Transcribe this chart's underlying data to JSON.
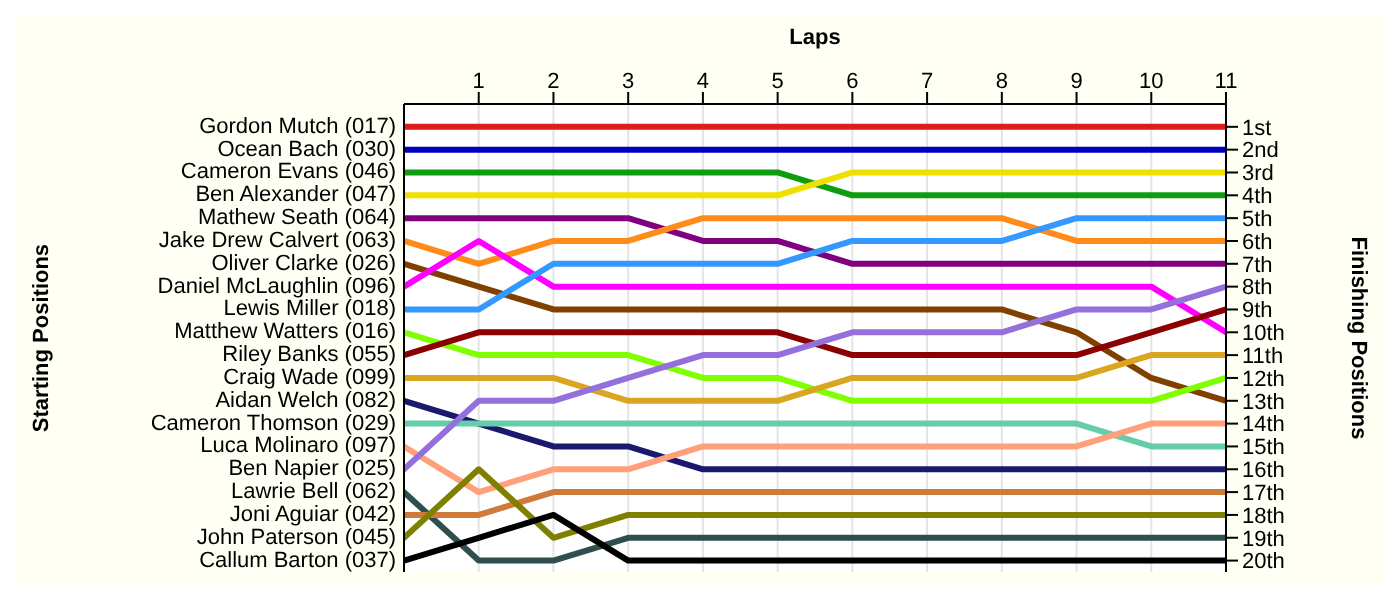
{
  "chart_data": {
    "type": "line",
    "xlabel": "Laps",
    "ylabel": "Finishing Positions",
    "annotations": [
      "Starting Positions"
    ],
    "legend": "left",
    "x": [
      0,
      1,
      2,
      3,
      4,
      5,
      6,
      7,
      8,
      9,
      10,
      11
    ],
    "xlim": [
      0,
      11
    ],
    "xticks": [
      1,
      2,
      3,
      4,
      5,
      6,
      7,
      8,
      9,
      10,
      11
    ],
    "ylim": [
      20.5,
      0
    ],
    "yticks": [
      {
        "value": 1,
        "label": "1st"
      },
      {
        "value": 2,
        "label": "2nd"
      },
      {
        "value": 3,
        "label": "3rd"
      },
      {
        "value": 4,
        "label": "4th"
      },
      {
        "value": 5,
        "label": "5th"
      },
      {
        "value": 6,
        "label": "6th"
      },
      {
        "value": 7,
        "label": "7th"
      },
      {
        "value": 8,
        "label": "8th"
      },
      {
        "value": 9,
        "label": "9th"
      },
      {
        "value": 10,
        "label": "10th"
      },
      {
        "value": 11,
        "label": "11th"
      },
      {
        "value": 12,
        "label": "12th"
      },
      {
        "value": 13,
        "label": "13th"
      },
      {
        "value": 14,
        "label": "14th"
      },
      {
        "value": 15,
        "label": "15th"
      },
      {
        "value": 16,
        "label": "16th"
      },
      {
        "value": 17,
        "label": "17th"
      },
      {
        "value": 18,
        "label": "18th"
      },
      {
        "value": 19,
        "label": "19th"
      },
      {
        "value": 20,
        "label": "20th"
      }
    ],
    "grid": "x",
    "marker": "none",
    "line_style": "solid",
    "series": [
      {
        "name": "Gordon Mutch (017)",
        "color": "#dd1c1c",
        "values": [
          1,
          1,
          1,
          1,
          1,
          1,
          1,
          1,
          1,
          1,
          1,
          1
        ]
      },
      {
        "name": "Ocean Bach (030)",
        "color": "#0000c0",
        "values": [
          2,
          2,
          2,
          2,
          2,
          2,
          2,
          2,
          2,
          2,
          2,
          2
        ]
      },
      {
        "name": "Cameron Evans (046)",
        "color": "#109c10",
        "values": [
          3,
          3,
          3,
          3,
          3,
          3,
          4,
          4,
          4,
          4,
          4,
          4
        ]
      },
      {
        "name": "Ben Alexander (047)",
        "color": "#f0e000",
        "values": [
          4,
          4,
          4,
          4,
          4,
          4,
          3,
          3,
          3,
          3,
          3,
          3
        ]
      },
      {
        "name": "Mathew Seath (064)",
        "color": "#800080",
        "values": [
          5,
          5,
          5,
          5,
          6,
          6,
          7,
          7,
          7,
          7,
          7,
          7
        ]
      },
      {
        "name": "Jake Drew Calvert (063)",
        "color": "#ff8c1a",
        "values": [
          6,
          7,
          6,
          6,
          5,
          5,
          5,
          5,
          5,
          6,
          6,
          6
        ]
      },
      {
        "name": "Oliver Clarke (026)",
        "color": "#804000",
        "values": [
          7,
          8,
          9,
          9,
          9,
          9,
          9,
          9,
          9,
          10,
          12,
          13
        ]
      },
      {
        "name": "Daniel McLaughlin (096)",
        "color": "#ff00ff",
        "values": [
          8,
          6,
          8,
          8,
          8,
          8,
          8,
          8,
          8,
          8,
          8,
          10
        ]
      },
      {
        "name": "Lewis Miller (018)",
        "color": "#3399ff",
        "values": [
          9,
          9,
          7,
          7,
          7,
          7,
          6,
          6,
          6,
          5,
          5,
          5
        ]
      },
      {
        "name": "Matthew Watters (016)",
        "color": "#80ff00",
        "values": [
          10,
          11,
          11,
          11,
          12,
          12,
          13,
          13,
          13,
          13,
          13,
          12
        ]
      },
      {
        "name": "Riley Banks (055)",
        "color": "#8b0000",
        "values": [
          11,
          10,
          10,
          10,
          10,
          10,
          11,
          11,
          11,
          11,
          10,
          9
        ]
      },
      {
        "name": "Craig Wade (099)",
        "color": "#daa520",
        "values": [
          12,
          12,
          12,
          13,
          13,
          13,
          12,
          12,
          12,
          12,
          11,
          11
        ]
      },
      {
        "name": "Aidan Welch (082)",
        "color": "#191970",
        "values": [
          13,
          14,
          15,
          15,
          16,
          16,
          16,
          16,
          16,
          16,
          16,
          16
        ]
      },
      {
        "name": "Cameron Thomson (029)",
        "color": "#66cdaa",
        "values": [
          14,
          14,
          14,
          14,
          14,
          14,
          14,
          14,
          14,
          14,
          15,
          15
        ]
      },
      {
        "name": "Luca Molinaro (097)",
        "color": "#ffa07a",
        "values": [
          15,
          17,
          16,
          16,
          15,
          15,
          15,
          15,
          15,
          15,
          14,
          14
        ]
      },
      {
        "name": "Ben Napier (025)",
        "color": "#9370db",
        "values": [
          16,
          13,
          13,
          12,
          11,
          11,
          10,
          10,
          10,
          9,
          9,
          8
        ]
      },
      {
        "name": "Lawrie Bell (062)",
        "color": "#2f4f4f",
        "values": [
          17,
          20,
          20,
          19,
          19,
          19,
          19,
          19,
          19,
          19,
          19,
          19
        ]
      },
      {
        "name": "Joni Aguiar (042)",
        "color": "#cd7a3a",
        "values": [
          18,
          18,
          17,
          17,
          17,
          17,
          17,
          17,
          17,
          17,
          17,
          17
        ]
      },
      {
        "name": "John Paterson (045)",
        "color": "#808000",
        "values": [
          19,
          16,
          19,
          18,
          18,
          18,
          18,
          18,
          18,
          18,
          18,
          18
        ]
      },
      {
        "name": "Callum Barton (037)",
        "color": "#000000",
        "values": [
          20,
          19,
          18,
          20,
          20,
          20,
          20,
          20,
          20,
          20,
          20,
          20
        ]
      }
    ]
  }
}
